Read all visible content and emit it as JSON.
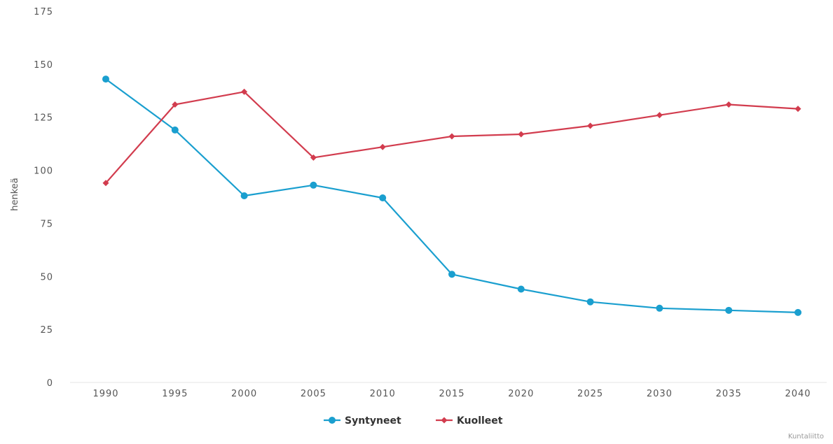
{
  "chart_data": {
    "type": "line",
    "title": "",
    "xlabel": "",
    "ylabel": "henkeä",
    "credit": "Kuntaliitto",
    "x": [
      1990,
      1995,
      2000,
      2005,
      2010,
      2015,
      2020,
      2025,
      2030,
      2035,
      2040
    ],
    "x_tick_labels": [
      "1990",
      "1995",
      "2000",
      "2005",
      "2010",
      "2015",
      "2020",
      "2025",
      "2030",
      "2035",
      "2040"
    ],
    "y_ticks": [
      0,
      25,
      50,
      75,
      100,
      125,
      150,
      175
    ],
    "y_tick_labels": [
      "0",
      "25",
      "50",
      "75",
      "100",
      "125",
      "150",
      "175"
    ],
    "ylim": [
      0,
      175
    ],
    "grid": false,
    "legend_position": "bottom-center",
    "series": [
      {
        "name": "Syntyneet",
        "color": "#1a9fcf",
        "marker": "circle",
        "values": [
          143,
          119,
          88,
          93,
          87,
          51,
          44,
          38,
          35,
          34,
          33
        ]
      },
      {
        "name": "Kuolleet",
        "color": "#d23c4e",
        "marker": "diamond",
        "values": [
          94,
          131,
          137,
          106,
          111,
          116,
          117,
          121,
          126,
          131,
          129
        ]
      }
    ]
  }
}
